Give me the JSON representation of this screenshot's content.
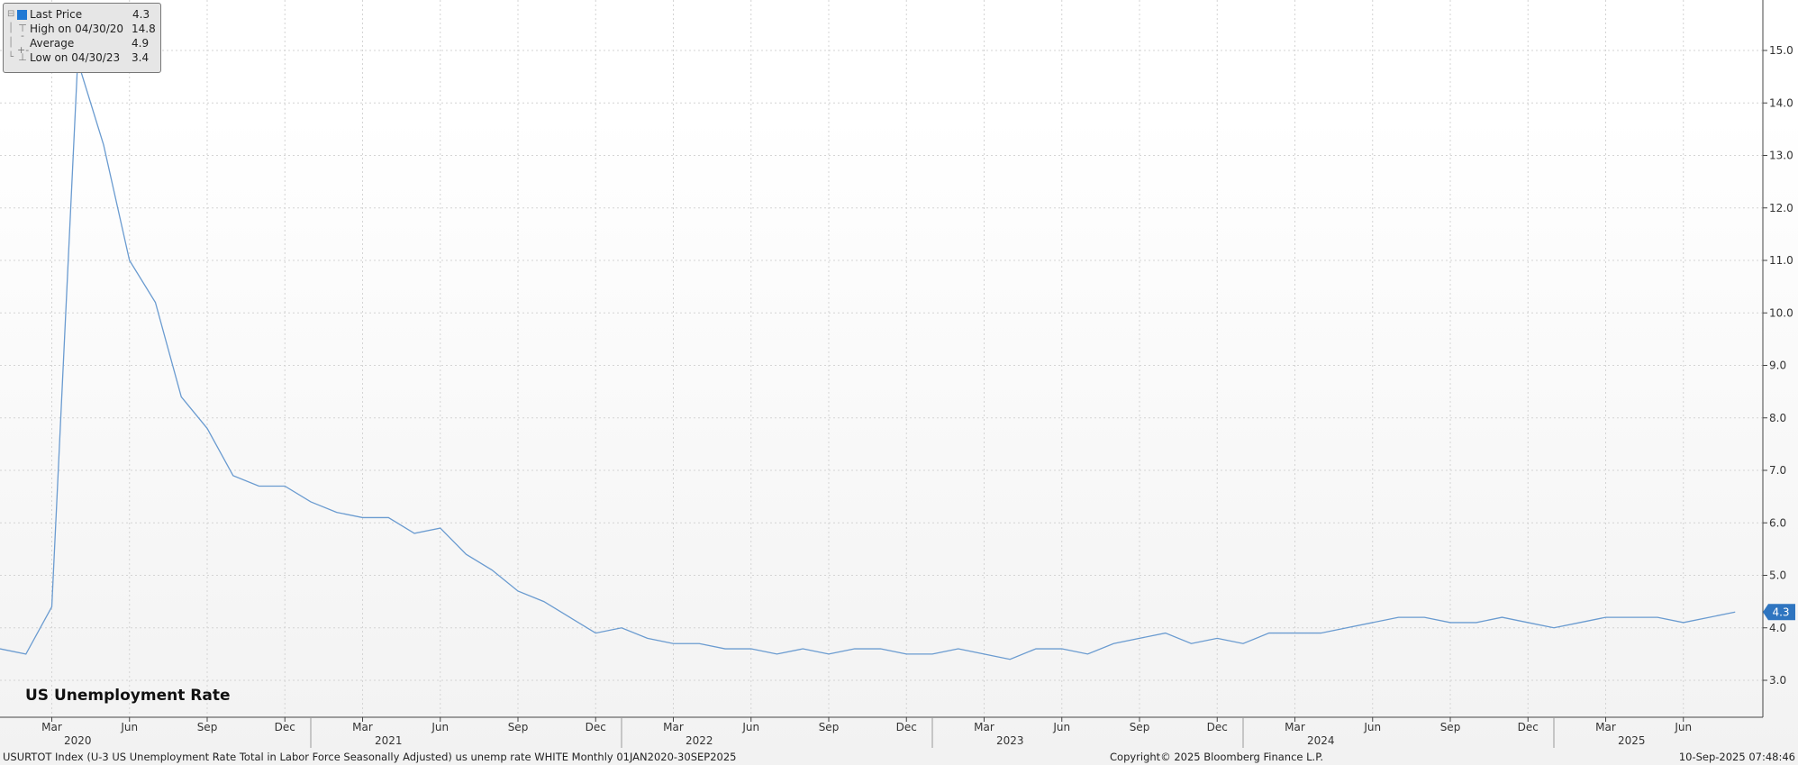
{
  "chart_data": {
    "type": "line",
    "title": "US Unemployment Rate",
    "legend": {
      "entries": [
        {
          "label": "Last Price",
          "value": "4.3"
        },
        {
          "label": "High on 04/30/20",
          "value": "14.8"
        },
        {
          "label": "Average",
          "value": "4.9"
        },
        {
          "label": "Low on 04/30/23",
          "value": "3.4"
        }
      ],
      "placement": "top-left"
    },
    "last_value_badge": "4.3",
    "series_color": "#6a9bd0",
    "x_range": [
      "2020-01",
      "2025-08"
    ],
    "ylim": [
      2.4,
      15.4
    ],
    "y_ticks": [
      "3.0",
      "4.0",
      "5.0",
      "6.0",
      "7.0",
      "8.0",
      "9.0",
      "10.0",
      "11.0",
      "12.0",
      "13.0",
      "14.0",
      "15.0"
    ],
    "y_axis_side": "right",
    "month_ticks": [
      "Mar",
      "Jun",
      "Sep",
      "Dec",
      "Mar",
      "Jun",
      "Sep",
      "Dec",
      "Mar",
      "Jun",
      "Sep",
      "Dec",
      "Mar",
      "Jun",
      "Sep",
      "Dec",
      "Mar",
      "Jun",
      "Sep",
      "Dec",
      "Mar",
      "Jun"
    ],
    "year_labels": [
      "2020",
      "2021",
      "2022",
      "2023",
      "2024",
      "2025"
    ],
    "grid": true,
    "series": [
      {
        "x": [
          "2020-01",
          "2020-02",
          "2020-03",
          "2020-04",
          "2020-05",
          "2020-06",
          "2020-07",
          "2020-08",
          "2020-09",
          "2020-10",
          "2020-11",
          "2020-12",
          "2021-01",
          "2021-02",
          "2021-03",
          "2021-04",
          "2021-05",
          "2021-06",
          "2021-07",
          "2021-08",
          "2021-09",
          "2021-10",
          "2021-11",
          "2021-12",
          "2022-01",
          "2022-02",
          "2022-03",
          "2022-04",
          "2022-05",
          "2022-06",
          "2022-07",
          "2022-08",
          "2022-09",
          "2022-10",
          "2022-11",
          "2022-12",
          "2023-01",
          "2023-02",
          "2023-03",
          "2023-04",
          "2023-05",
          "2023-06",
          "2023-07",
          "2023-08",
          "2023-09",
          "2023-10",
          "2023-11",
          "2023-12",
          "2024-01",
          "2024-02",
          "2024-03",
          "2024-04",
          "2024-05",
          "2024-06",
          "2024-07",
          "2024-08",
          "2024-09",
          "2024-10",
          "2024-11",
          "2024-12",
          "2025-01",
          "2025-02",
          "2025-03",
          "2025-04",
          "2025-05",
          "2025-06",
          "2025-07",
          "2025-08"
        ],
        "values": [
          3.6,
          3.5,
          4.4,
          14.8,
          13.2,
          11.0,
          10.2,
          8.4,
          7.8,
          6.9,
          6.7,
          6.7,
          6.4,
          6.2,
          6.1,
          6.1,
          5.8,
          5.9,
          5.4,
          5.1,
          4.7,
          4.5,
          4.2,
          3.9,
          4.0,
          3.8,
          3.7,
          3.7,
          3.6,
          3.6,
          3.5,
          3.6,
          3.5,
          3.6,
          3.6,
          3.5,
          3.5,
          3.6,
          3.5,
          3.4,
          3.6,
          3.6,
          3.5,
          3.7,
          3.8,
          3.9,
          3.7,
          3.8,
          3.7,
          3.9,
          3.9,
          3.9,
          4.0,
          4.1,
          4.2,
          4.2,
          4.1,
          4.1,
          4.2,
          4.1,
          4.0,
          4.1,
          4.2,
          4.2,
          4.2,
          4.1,
          4.2,
          4.3
        ]
      }
    ]
  },
  "footer": {
    "source": "USURTOT Index (U-3 US Unemployment Rate Total in Labor Force Seasonally Adjusted) us unemp rate WHITE  Monthly 01JAN2020-30SEP2025",
    "copyright": "Copyright© 2025 Bloomberg Finance L.P.",
    "timestamp": "10-Sep-2025 07:48:46"
  }
}
